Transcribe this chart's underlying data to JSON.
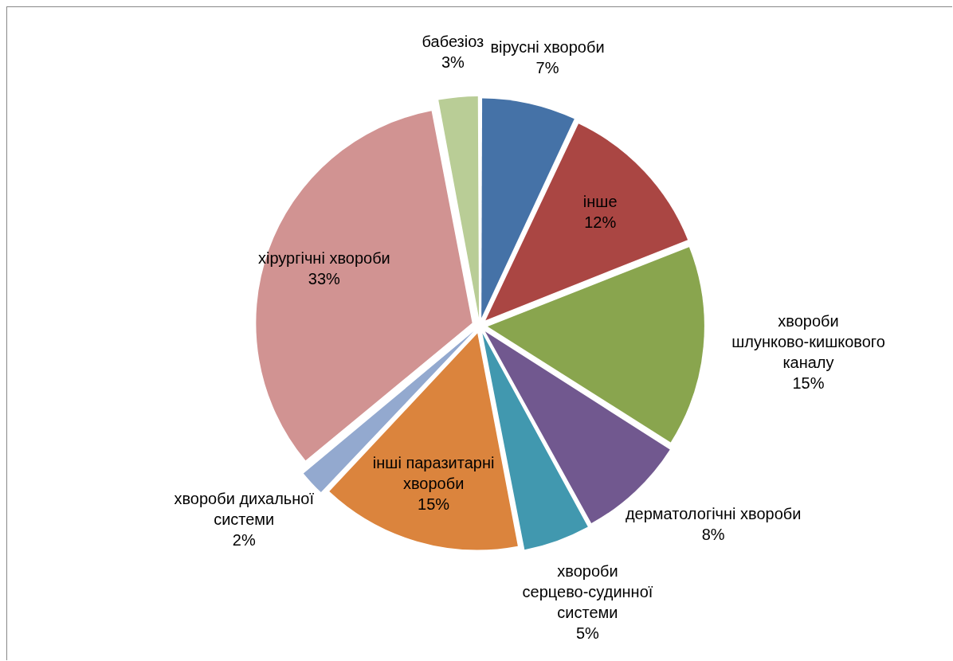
{
  "chart_data": {
    "type": "pie",
    "categories": [
      "вірусні хвороби",
      "інше",
      "хвороби шлунково-кишкового каналу",
      "дерматологічні хвороби",
      "хвороби серцево-судинної системи",
      "інші паразитарні хвороби",
      "хвороби дихальної системи",
      "хірургічні хвороби",
      "бабезіоз"
    ],
    "values": [
      7,
      12,
      15,
      8,
      5,
      15,
      2,
      33,
      3
    ],
    "value_labels": [
      "7%",
      "12%",
      "15%",
      "8%",
      "5%",
      "15%",
      "2%",
      "33%",
      "3%"
    ],
    "colors": [
      "#4572a7",
      "#aa4643",
      "#89a54e",
      "#71588f",
      "#4198af",
      "#db843d",
      "#93a9cf",
      "#d19392",
      "#b9cd96"
    ],
    "legend": false
  }
}
